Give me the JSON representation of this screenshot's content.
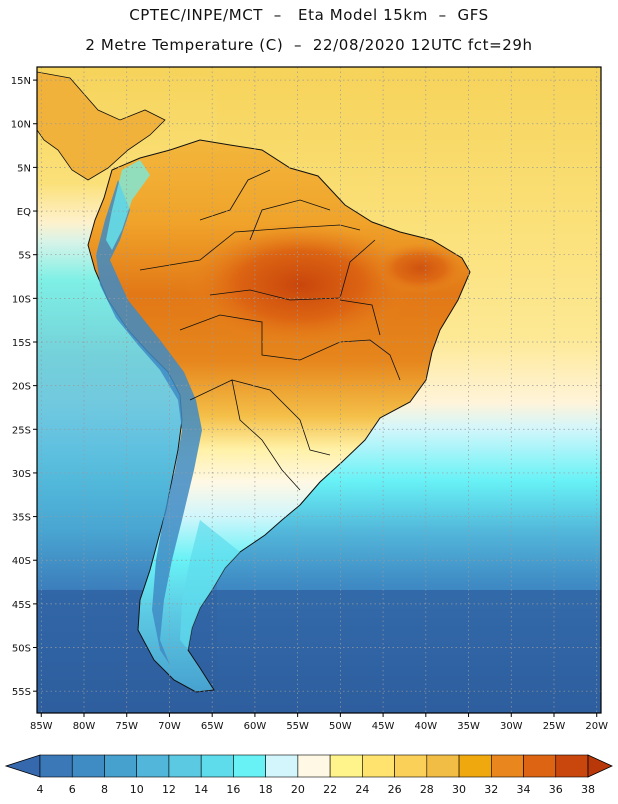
{
  "title": {
    "line1": "CPTEC/INPE/MCT  –   Eta Model 15km  –  GFS",
    "line2": "2 Metre Temperature (C)  –  22/08/2020 12UTC fct=29h"
  },
  "map": {
    "lat_labels": [
      "15N",
      "10N",
      "5N",
      "EQ",
      "5S",
      "10S",
      "15S",
      "20S",
      "25S",
      "30S",
      "35S",
      "40S",
      "45S",
      "50S",
      "55S"
    ],
    "lat_values": [
      15,
      10,
      5,
      0,
      -5,
      -10,
      -15,
      -20,
      -25,
      -30,
      -35,
      -40,
      -45,
      -50,
      -55
    ],
    "lon_labels": [
      "85W",
      "80W",
      "75W",
      "70W",
      "65W",
      "60W",
      "55W",
      "50W",
      "45W",
      "40W",
      "35W",
      "30W",
      "25W",
      "20W"
    ],
    "lon_values": [
      -85,
      -80,
      -75,
      -70,
      -65,
      -60,
      -55,
      -50,
      -45,
      -40,
      -35,
      -30,
      -25,
      -20
    ],
    "extent": {
      "lon_min": -85.5,
      "lon_max": -19.5,
      "lat_min": -57.5,
      "lat_max": 16.5
    }
  },
  "colorbar": {
    "labels": [
      "4",
      "6",
      "8",
      "10",
      "12",
      "14",
      "16",
      "18",
      "20",
      "22",
      "24",
      "26",
      "28",
      "30",
      "32",
      "34",
      "36",
      "38"
    ],
    "colors": [
      "#3a78b8",
      "#3f8bc4",
      "#47a1cf",
      "#52b6da",
      "#5cc9e3",
      "#5edcec",
      "#68f2f6",
      "#d2f6fb",
      "#fff8e5",
      "#fff48c",
      "#ffe36e",
      "#fbd058",
      "#f2bd45",
      "#f0a80f",
      "#e9861d",
      "#dc6412",
      "#c9460c"
    ],
    "under_color": "#3668ad",
    "over_color": "#b8380a"
  },
  "colors": {
    "ocean_deep": "#2e5e9e",
    "ocean_mid": "#3a78b8",
    "ocean_cool": "#47a1cf",
    "ocean_cyan": "#5edcec",
    "ocean_light": "#d2f6fb",
    "ocean_warm": "#fbe98a",
    "ocean_warmer": "#f7d65e",
    "land_hot": "#d86410",
    "land_warm": "#ec9a22",
    "land_mild": "#f4c04a",
    "andes_cold": "#3c6fae",
    "border": "#111111",
    "grid": "#bbbbbb"
  }
}
